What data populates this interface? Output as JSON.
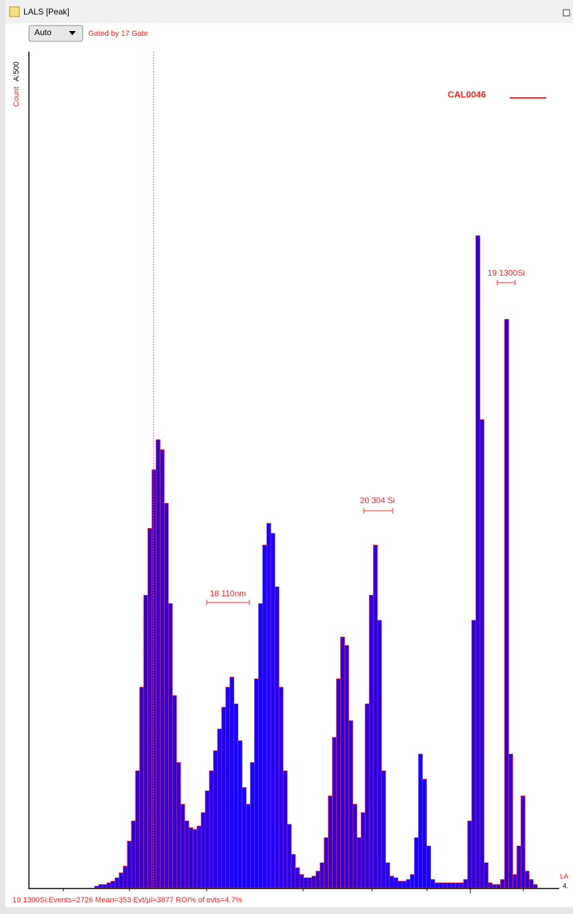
{
  "window": {
    "title": "LALS [Peak]",
    "scale_select": "Auto",
    "gate_label": "Gated by 17 Gate"
  },
  "chart_data": {
    "type": "histogram",
    "y_label": "Count",
    "y_scale_label": "A:500",
    "ylim": [
      0,
      500
    ],
    "color": "#1a00ff",
    "edge_color": "#ff2020",
    "legend": {
      "name": "CAL0046",
      "color": "#ff2020"
    },
    "annotations": [
      "18 110nm",
      "20 304 Si",
      "19 1300Si"
    ],
    "x_label_partial": "LA",
    "x_tick_partial": "4.",
    "values": [
      0,
      0,
      0,
      0,
      0,
      0,
      0,
      0,
      0,
      0,
      0,
      0,
      0,
      0,
      0,
      0,
      1,
      2,
      2,
      3,
      4,
      6,
      9,
      13,
      28,
      40,
      70,
      120,
      175,
      215,
      250,
      268,
      262,
      230,
      170,
      115,
      75,
      50,
      40,
      36,
      35,
      37,
      45,
      58,
      70,
      82,
      95,
      108,
      120,
      126,
      110,
      88,
      60,
      50,
      75,
      125,
      170,
      205,
      218,
      212,
      180,
      120,
      70,
      38,
      20,
      12,
      8,
      6,
      6,
      7,
      10,
      15,
      30,
      55,
      90,
      125,
      150,
      145,
      100,
      50,
      30,
      45,
      110,
      175,
      205,
      160,
      70,
      15,
      7,
      6,
      4,
      4,
      5,
      8,
      30,
      80,
      65,
      25,
      5,
      3,
      3,
      3,
      3,
      3,
      3,
      3,
      5,
      40,
      160,
      390,
      280,
      15,
      3,
      2,
      2,
      5,
      340,
      80,
      8,
      25,
      55,
      10,
      5,
      2,
      0,
      0,
      0,
      0,
      0
    ]
  },
  "status_bar": "19 1300Si:Events=2726  Mean=353  Evt/µl=3877  ROI% of evts=4.7%"
}
